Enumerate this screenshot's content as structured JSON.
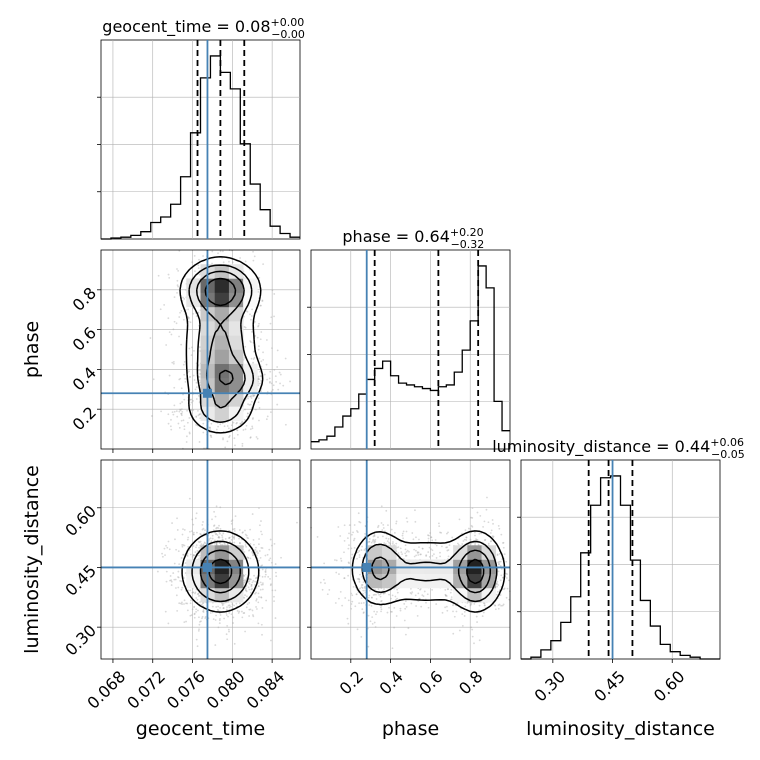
{
  "chart_data": {
    "type": "corner",
    "colors": {
      "truth": "#4682b4",
      "hist": "#000000",
      "grid": "#b0b0b0",
      "scatter": "#aaaaaa"
    },
    "parameters": [
      "geocent_time",
      "phase",
      "luminosity_distance"
    ],
    "truths": {
      "geocent_time": 0.0775,
      "phase": 0.28,
      "luminosity_distance": 0.45
    },
    "titles": [
      {
        "param": "geocent_time",
        "text": "geocent_time = 0.08",
        "plus": "+0.00",
        "minus": "−0.00"
      },
      {
        "param": "phase",
        "text": "phase = 0.64",
        "plus": "+0.20",
        "minus": "−0.32"
      },
      {
        "param": "luminosity_distance",
        "text": "luminosity_distance = 0.44",
        "plus": "+0.06",
        "minus": "−0.05"
      }
    ],
    "ranges": {
      "geocent_time": [
        0.0668,
        0.0868
      ],
      "phase": [
        0.0,
        1.0
      ],
      "luminosity_distance": [
        0.22,
        0.72
      ]
    },
    "ticks": {
      "geocent_time": {
        "values": [
          0.068,
          0.072,
          0.076,
          0.08,
          0.084
        ],
        "labels": [
          "0.068",
          "0.072",
          "0.076",
          "0.080",
          "0.084"
        ]
      },
      "phase": {
        "values": [
          0.2,
          0.4,
          0.6,
          0.8
        ],
        "labels": [
          "0.2",
          "0.4",
          "0.6",
          "0.8"
        ]
      },
      "luminosity_distance": {
        "values": [
          0.3,
          0.45,
          0.6
        ],
        "labels": [
          "0.30",
          "0.45",
          "0.60"
        ]
      }
    },
    "diag_hists": {
      "geocent_time": {
        "quantiles": [
          0.0765,
          0.0788,
          0.0812
        ],
        "bin_edges": [
          0.0668,
          0.0678,
          0.0688,
          0.0698,
          0.0708,
          0.0718,
          0.0728,
          0.0738,
          0.0748,
          0.0758,
          0.0768,
          0.0778,
          0.0788,
          0.0798,
          0.0808,
          0.0818,
          0.0828,
          0.0838,
          0.0848,
          0.0858,
          0.0868
        ],
        "counts": [
          0,
          0.005,
          0.01,
          0.02,
          0.04,
          0.09,
          0.12,
          0.19,
          0.34,
          0.58,
          0.88,
          1.0,
          0.91,
          0.82,
          0.52,
          0.3,
          0.16,
          0.07,
          0.03,
          0.01
        ]
      },
      "phase": {
        "quantiles": [
          0.32,
          0.64,
          0.84
        ],
        "bin_edges": [
          0.0,
          0.04,
          0.08,
          0.12,
          0.16,
          0.2,
          0.24,
          0.28,
          0.32,
          0.36,
          0.4,
          0.44,
          0.48,
          0.52,
          0.56,
          0.6,
          0.64,
          0.68,
          0.72,
          0.76,
          0.8,
          0.84,
          0.88,
          0.92,
          0.96,
          1.0
        ],
        "counts": [
          0.04,
          0.05,
          0.07,
          0.12,
          0.18,
          0.22,
          0.3,
          0.38,
          0.44,
          0.48,
          0.4,
          0.36,
          0.35,
          0.34,
          0.33,
          0.32,
          0.34,
          0.35,
          0.42,
          0.54,
          0.7,
          1.0,
          0.88,
          0.26,
          0.1
        ]
      },
      "luminosity_distance": {
        "quantiles": [
          0.39,
          0.44,
          0.5
        ],
        "bin_edges": [
          0.22,
          0.245,
          0.27,
          0.295,
          0.32,
          0.345,
          0.37,
          0.395,
          0.42,
          0.445,
          0.47,
          0.495,
          0.52,
          0.545,
          0.57,
          0.595,
          0.62,
          0.645,
          0.67,
          0.695,
          0.72
        ],
        "counts": [
          0,
          0.01,
          0.05,
          0.1,
          0.2,
          0.34,
          0.58,
          0.84,
          0.99,
          1.0,
          0.84,
          0.54,
          0.32,
          0.18,
          0.08,
          0.04,
          0.02,
          0.01,
          0,
          0
        ]
      }
    },
    "pair_densities": [
      {
        "x": "geocent_time",
        "y": "phase",
        "blobs": [
          {
            "cx": 0.0788,
            "cy": 0.8,
            "sx": 0.0018,
            "sy": 0.07,
            "w": 1.0
          },
          {
            "cx": 0.0788,
            "cy": 0.5,
            "sx": 0.0018,
            "sy": 0.19,
            "w": 0.55
          },
          {
            "cx": 0.0798,
            "cy": 0.35,
            "sx": 0.0016,
            "sy": 0.06,
            "w": 0.5
          },
          {
            "cx": 0.0788,
            "cy": 0.2,
            "sx": 0.0017,
            "sy": 0.06,
            "w": 0.3
          }
        ],
        "contour_levels": [
          0.08,
          0.22,
          0.42,
          0.7
        ]
      },
      {
        "x": "geocent_time",
        "y": "luminosity_distance",
        "blobs": [
          {
            "cx": 0.0788,
            "cy": 0.44,
            "sx": 0.0017,
            "sy": 0.045,
            "w": 1.0
          }
        ],
        "contour_levels": [
          0.08,
          0.25,
          0.5,
          0.8
        ]
      },
      {
        "x": "phase",
        "y": "luminosity_distance",
        "blobs": [
          {
            "cx": 0.83,
            "cy": 0.44,
            "sx": 0.06,
            "sy": 0.045,
            "w": 1.0
          },
          {
            "cx": 0.34,
            "cy": 0.45,
            "sx": 0.06,
            "sy": 0.045,
            "w": 0.55
          },
          {
            "cx": 0.58,
            "cy": 0.44,
            "sx": 0.18,
            "sy": 0.045,
            "w": 0.32
          }
        ],
        "contour_levels": [
          0.08,
          0.25,
          0.5,
          0.8
        ]
      }
    ]
  }
}
